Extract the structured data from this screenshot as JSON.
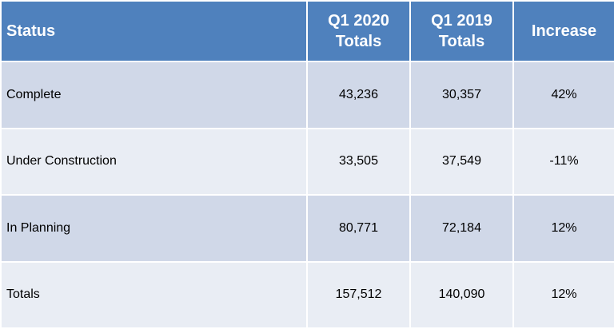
{
  "table": {
    "header": [
      "Status",
      "Q1 2020 Totals",
      "Q1 2019 Totals",
      "Increase"
    ],
    "rows": [
      [
        "Complete",
        "43,236",
        "30,357",
        "42%"
      ],
      [
        "Under Construction",
        "33,505",
        "37,549",
        "-11%"
      ],
      [
        "In Planning",
        "80,771",
        "72,184",
        "12%"
      ],
      [
        "Totals",
        "157,512",
        "140,090",
        "12%"
      ]
    ]
  }
}
